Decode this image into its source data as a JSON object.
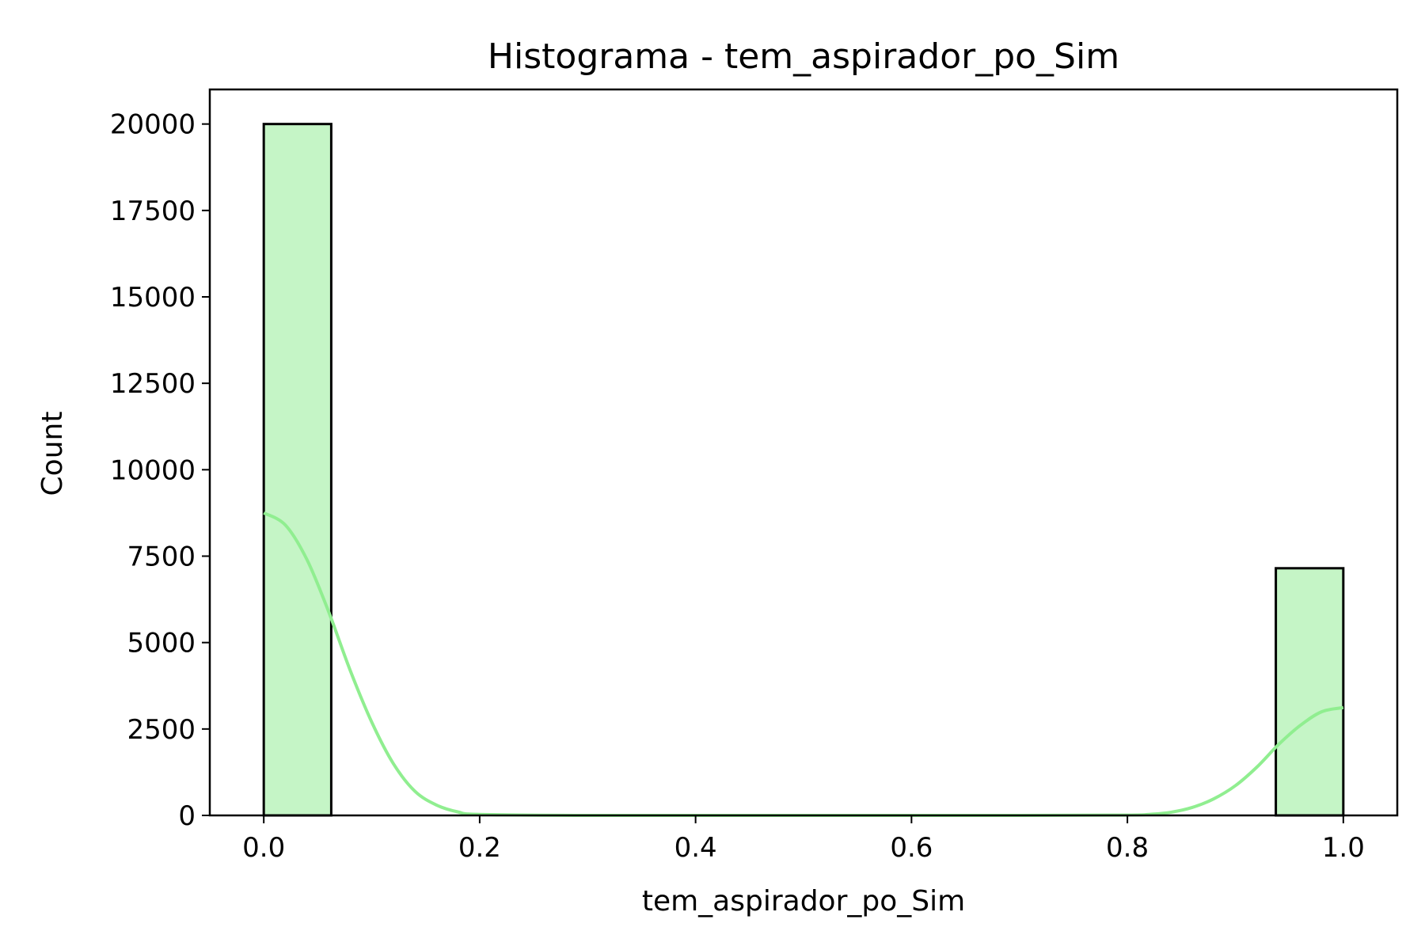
{
  "chart_data": {
    "type": "bar",
    "title": "Histograma - tem_aspirador_po_Sim",
    "xlabel": "tem_aspirador_po_Sim",
    "ylabel": "Count",
    "xlim": [
      -0.05,
      1.05
    ],
    "ylim": [
      0,
      21000
    ],
    "x_ticks": [
      0.0,
      0.2,
      0.4,
      0.6,
      0.8,
      1.0
    ],
    "x_tick_labels": [
      "0.0",
      "0.2",
      "0.4",
      "0.6",
      "0.8",
      "1.0"
    ],
    "y_ticks": [
      0,
      2500,
      5000,
      7500,
      10000,
      12500,
      15000,
      17500,
      20000
    ],
    "y_tick_labels": [
      "0",
      "2500",
      "5000",
      "7500",
      "10000",
      "12500",
      "15000",
      "17500",
      "20000"
    ],
    "bins": [
      {
        "x0": 0.0,
        "x1": 0.0625,
        "count": 20000
      },
      {
        "x0": 0.9375,
        "x1": 1.0,
        "count": 7150
      }
    ],
    "kde": {
      "x": [
        0.0,
        0.02,
        0.04,
        0.06,
        0.08,
        0.1,
        0.12,
        0.14,
        0.16,
        0.18,
        0.2,
        0.3,
        0.5,
        0.7,
        0.8,
        0.82,
        0.84,
        0.86,
        0.88,
        0.9,
        0.92,
        0.94,
        0.96,
        0.98,
        1.0
      ],
      "y": [
        8750,
        8400,
        7400,
        5900,
        4200,
        2700,
        1500,
        700,
        300,
        100,
        30,
        0,
        0,
        0,
        10,
        30,
        90,
        230,
        480,
        860,
        1400,
        2050,
        2600,
        3000,
        3120
      ]
    },
    "grid": false,
    "legend": "none",
    "colors": {
      "bar_fill": "#c5f5c6",
      "bar_edge": "#000000",
      "kde_line": "#90ee90"
    }
  }
}
